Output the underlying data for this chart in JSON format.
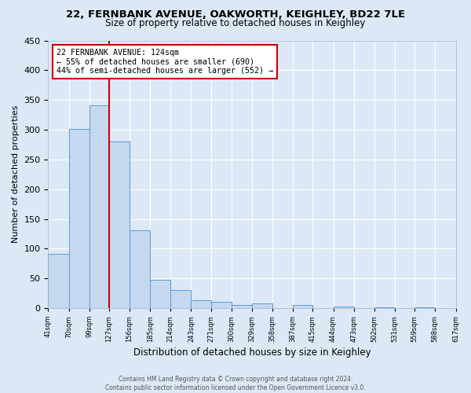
{
  "title": "22, FERNBANK AVENUE, OAKWORTH, KEIGHLEY, BD22 7LE",
  "subtitle": "Size of property relative to detached houses in Keighley",
  "xlabel": "Distribution of detached houses by size in Keighley",
  "ylabel": "Number of detached properties",
  "bar_color": "#c5d8f0",
  "bar_edge_color": "#5b9bd5",
  "background_color": "#dce8f5",
  "grid_color": "#ffffff",
  "bin_edges": [
    41,
    70,
    99,
    127,
    156,
    185,
    214,
    243,
    271,
    300,
    329,
    358,
    387,
    415,
    444,
    473,
    502,
    531,
    559,
    588,
    617
  ],
  "bin_labels": [
    "41sqm",
    "70sqm",
    "99sqm",
    "127sqm",
    "156sqm",
    "185sqm",
    "214sqm",
    "243sqm",
    "271sqm",
    "300sqm",
    "329sqm",
    "358sqm",
    "387sqm",
    "415sqm",
    "444sqm",
    "473sqm",
    "502sqm",
    "531sqm",
    "559sqm",
    "588sqm",
    "617sqm"
  ],
  "bar_heights": [
    91,
    301,
    341,
    280,
    131,
    47,
    30,
    13,
    11,
    5,
    8,
    0,
    5,
    0,
    3,
    0,
    2,
    0,
    2,
    0
  ],
  "vline_x": 127,
  "vline_color": "#cc0000",
  "annotation_text": "22 FERNBANK AVENUE: 124sqm\n← 55% of detached houses are smaller (690)\n44% of semi-detached houses are larger (552) →",
  "annotation_box_color": "#ffffff",
  "annotation_box_edge": "#cc0000",
  "ylim": [
    0,
    450
  ],
  "yticks": [
    0,
    50,
    100,
    150,
    200,
    250,
    300,
    350,
    400,
    450
  ],
  "footer_line1": "Contains HM Land Registry data © Crown copyright and database right 2024.",
  "footer_line2": "Contains public sector information licensed under the Open Government Licence v3.0."
}
